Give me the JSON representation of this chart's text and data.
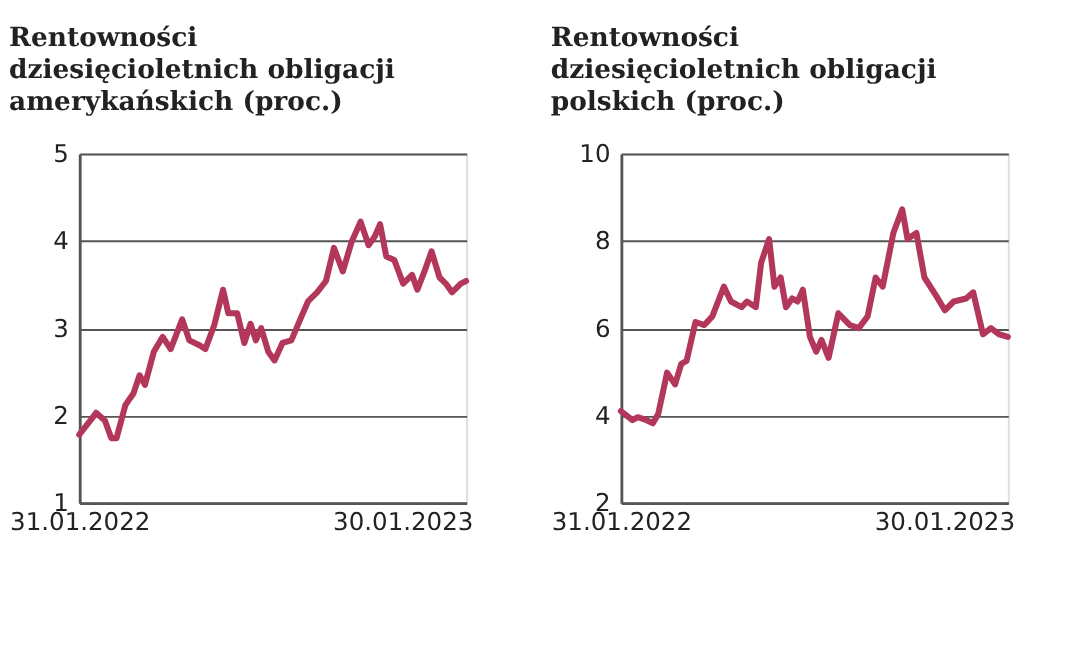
{
  "chart_data": [
    {
      "type": "line",
      "title": "Rentowności dziesięcioletnich obligacji amerykańskich (proc.)",
      "xlim": [
        "2022-01-31",
        "2023-04-12"
      ],
      "xticks": [
        {
          "value": "2022-01-31",
          "label": "31.01.2022"
        },
        {
          "value": "2023-01-30",
          "label": "30.01.2023"
        }
      ],
      "ylim": [
        1,
        5
      ],
      "yticks": [
        1,
        2,
        3,
        4,
        5
      ],
      "grid": "y",
      "marker": "none",
      "line_style": "solid",
      "x": [
        "2022-01-31",
        "2022-02-13",
        "2022-02-19",
        "2022-03-01",
        "2022-03-08",
        "2022-03-14",
        "2022-03-24",
        "2022-04-02",
        "2022-04-09",
        "2022-04-15",
        "2022-04-25",
        "2022-05-05",
        "2022-05-14",
        "2022-05-27",
        "2022-06-04",
        "2022-06-16",
        "2022-06-22",
        "2022-07-02",
        "2022-07-12",
        "2022-07-18",
        "2022-07-28",
        "2022-08-05",
        "2022-08-12",
        "2022-08-18",
        "2022-08-24",
        "2022-09-01",
        "2022-09-08",
        "2022-09-17",
        "2022-09-27",
        "2022-10-07",
        "2022-10-16",
        "2022-10-26",
        "2022-11-05",
        "2022-11-14",
        "2022-11-24",
        "2022-12-04",
        "2022-12-14",
        "2022-12-23",
        "2022-12-30",
        "2023-01-05",
        "2023-01-12",
        "2023-01-21",
        "2023-01-31",
        "2023-02-10",
        "2023-02-16",
        "2023-02-24",
        "2023-03-04",
        "2023-03-13",
        "2023-03-20",
        "2023-03-27",
        "2023-04-06",
        "2023-04-12"
      ],
      "series": [
        {
          "color": "#b3375b",
          "values": [
            1.78,
            1.95,
            2.03,
            1.94,
            1.74,
            1.74,
            2.12,
            2.25,
            2.46,
            2.35,
            2.73,
            2.9,
            2.76,
            3.1,
            2.86,
            2.8,
            2.76,
            3.03,
            3.44,
            3.17,
            3.17,
            2.83,
            3.05,
            2.86,
            3.0,
            2.73,
            2.63,
            2.83,
            2.86,
            3.1,
            3.31,
            3.41,
            3.54,
            3.92,
            3.65,
            3.99,
            4.22,
            3.95,
            4.05,
            4.19,
            3.82,
            3.78,
            3.51,
            3.61,
            3.44,
            3.65,
            3.88,
            3.58,
            3.51,
            3.41,
            3.51,
            3.54
          ]
        }
      ]
    },
    {
      "type": "line",
      "title": "Rentowności dziesięcioletnich obligacji polskich (proc.)",
      "xlim": [
        "2022-01-31",
        "2023-04-12"
      ],
      "xticks": [
        {
          "value": "2022-01-31",
          "label": "31.01.2022"
        },
        {
          "value": "2023-01-30",
          "label": "30.01.2023"
        }
      ],
      "ylim": [
        2,
        10
      ],
      "yticks": [
        2,
        4,
        6,
        8,
        10
      ],
      "grid": "y",
      "marker": "none",
      "line_style": "solid",
      "x": [
        "2022-01-31",
        "2022-02-13",
        "2022-02-19",
        "2022-03-01",
        "2022-03-08",
        "2022-03-14",
        "2022-03-24",
        "2022-04-02",
        "2022-04-09",
        "2022-04-15",
        "2022-04-25",
        "2022-05-05",
        "2022-05-14",
        "2022-05-27",
        "2022-06-04",
        "2022-06-16",
        "2022-06-22",
        "2022-07-02",
        "2022-07-08",
        "2022-07-17",
        "2022-07-23",
        "2022-07-30",
        "2022-08-05",
        "2022-08-12",
        "2022-08-18",
        "2022-08-24",
        "2022-09-01",
        "2022-09-08",
        "2022-09-14",
        "2022-09-22",
        "2022-10-03",
        "2022-10-16",
        "2022-10-26",
        "2022-11-05",
        "2022-11-14",
        "2022-11-22",
        "2022-12-04",
        "2022-12-14",
        "2022-12-20",
        "2022-12-30",
        "2023-01-08",
        "2023-01-21",
        "2023-01-31",
        "2023-02-10",
        "2023-02-24",
        "2023-03-04",
        "2023-03-15",
        "2023-03-24",
        "2023-04-02",
        "2023-04-12"
      ],
      "series": [
        {
          "color": "#b3375b",
          "values": [
            4.1,
            3.89,
            3.96,
            3.89,
            3.82,
            4.03,
            4.98,
            4.71,
            5.18,
            5.25,
            6.14,
            6.07,
            6.27,
            6.95,
            6.61,
            6.48,
            6.61,
            6.48,
            7.5,
            8.04,
            6.95,
            7.16,
            6.48,
            6.68,
            6.61,
            6.88,
            5.8,
            5.46,
            5.73,
            5.32,
            6.34,
            6.07,
            6.0,
            6.27,
            7.16,
            6.95,
            8.18,
            8.72,
            8.04,
            8.18,
            7.16,
            6.75,
            6.41,
            6.61,
            6.68,
            6.82,
            5.86,
            6.0,
            5.86,
            5.8
          ]
        }
      ]
    }
  ]
}
